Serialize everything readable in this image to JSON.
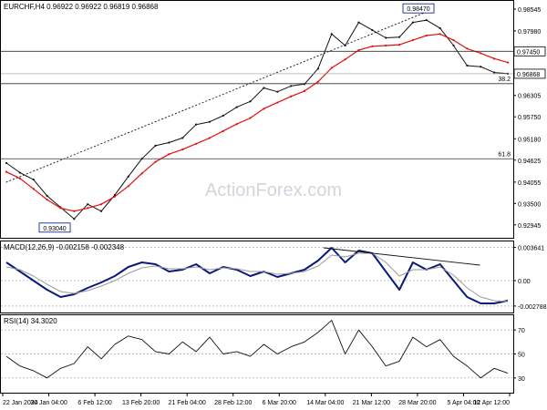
{
  "header": {
    "text": "EURCHF,H4  0.96922 0.96922 0.96819 0.96868"
  },
  "watermark": "ActionForex.com",
  "colors": {
    "price": "#111111",
    "ma": "#e01010",
    "macd": "#0a1a7a",
    "signal": "#9a9a9a",
    "rsi": "#111111",
    "hline": "#333333"
  },
  "chart_data": [
    {
      "type": "line",
      "title": "EURCHF,H4",
      "ylim": [
        0.9268,
        0.9864
      ],
      "y_ticks": [
        "0.98545",
        "0.97980",
        "0.97450",
        "0.96305",
        "0.95750",
        "0.95180",
        "0.94625",
        "0.94055",
        "0.93500",
        "0.92945"
      ],
      "x_ticks": [
        "22 Jan 2024",
        "30 Jan 04:00",
        "6 Feb 12:00",
        "13 Feb 20:00",
        "21 Feb 04:00",
        "28 Feb 12:00",
        "6 Mar 20:00",
        "14 Mar 04:00",
        "21 Mar 12:00",
        "28 Mar 20:00",
        "5 Apr 04:00",
        "12 Apr 12:00"
      ],
      "last_price": {
        "label": "0.96868",
        "value": 0.96868
      },
      "annotations": [
        {
          "label": "0.98470",
          "value": 0.9847,
          "x": 0.815
        },
        {
          "label": "0.93040",
          "value": 0.9304,
          "x": 0.105
        },
        {
          "label": "0.97450",
          "value": 0.9745,
          "line": true
        },
        {
          "label": "38.2",
          "value": 0.9661,
          "line": true
        },
        {
          "label": "61.8",
          "value": 0.9466,
          "line": true
        }
      ],
      "series": [
        {
          "values": [
            0.9455,
            0.943,
            0.9412,
            0.937,
            0.934,
            0.931,
            0.9348,
            0.933,
            0.9372,
            0.942,
            0.9466,
            0.95,
            0.9508,
            0.952,
            0.9555,
            0.9562,
            0.9578,
            0.96,
            0.9615,
            0.965,
            0.964,
            0.9655,
            0.966,
            0.97,
            0.979,
            0.976,
            0.982,
            0.98,
            0.978,
            0.9782,
            0.982,
            0.9826,
            0.9805,
            0.976,
            0.9708,
            0.9705,
            0.969,
            0.9687
          ]
        },
        {
          "values": [
            0.9432,
            0.9415,
            0.9388,
            0.936,
            0.9338,
            0.933,
            0.9338,
            0.9348,
            0.9368,
            0.9395,
            0.9428,
            0.9458,
            0.9478,
            0.949,
            0.9505,
            0.952,
            0.9538,
            0.9556,
            0.9572,
            0.9596,
            0.9612,
            0.9628,
            0.9642,
            0.9666,
            0.9702,
            0.9724,
            0.9748,
            0.9758,
            0.976,
            0.9762,
            0.9774,
            0.9786,
            0.979,
            0.9774,
            0.9752,
            0.974,
            0.9726,
            0.9716
          ]
        }
      ],
      "trendlines": [
        {
          "from": [
            0.01,
            0.9405
          ],
          "to": [
            0.83,
            0.9847
          ]
        }
      ]
    },
    {
      "type": "line",
      "title": "MACD(12,26,9) -0.002158 -0.002348",
      "ylim": [
        -0.0032,
        0.004
      ],
      "y_ticks": [
        "0.003641",
        "0.00",
        "-0.002788"
      ],
      "series": [
        {
          "values": [
            0.002,
            0.001,
            0.0,
            -0.001,
            -0.0018,
            -0.0015,
            -0.0008,
            -0.0002,
            0.0005,
            0.0015,
            0.002,
            0.0018,
            0.001,
            0.0012,
            0.0018,
            0.0008,
            0.0015,
            0.0012,
            0.0005,
            0.001,
            0.0004,
            0.0008,
            0.0012,
            0.0022,
            0.0036,
            0.002,
            0.0033,
            0.003,
            0.001,
            -0.001,
            0.002,
            0.0012,
            0.0018,
            0.0,
            -0.0018,
            -0.0025,
            -0.0025,
            -0.0022
          ]
        },
        {
          "values": [
            0.0015,
            0.0012,
            0.0005,
            -0.0004,
            -0.0012,
            -0.0014,
            -0.0011,
            -0.0006,
            0.0,
            0.0008,
            0.0014,
            0.0016,
            0.0013,
            0.0013,
            0.0015,
            0.0012,
            0.0014,
            0.0013,
            0.001,
            0.001,
            0.0007,
            0.0008,
            0.001,
            0.0016,
            0.0028,
            0.0026,
            0.003,
            0.003,
            0.002,
            0.0005,
            0.0012,
            0.0012,
            0.0015,
            0.0006,
            -0.0008,
            -0.0018,
            -0.0022,
            -0.0023
          ]
        }
      ],
      "trendlines": [
        {
          "from": [
            0.63,
            0.0036
          ],
          "to": [
            0.935,
            0.0017
          ]
        }
      ]
    },
    {
      "type": "line",
      "title": "RSI(14) 34.3020",
      "ylim": [
        20,
        80
      ],
      "y_ticks": [
        "70",
        "50",
        "30"
      ],
      "series": [
        {
          "values": [
            48,
            40,
            36,
            30,
            38,
            42,
            56,
            46,
            58,
            65,
            62,
            52,
            50,
            60,
            52,
            64,
            50,
            52,
            48,
            58,
            50,
            56,
            60,
            68,
            78,
            50,
            70,
            56,
            40,
            44,
            64,
            56,
            62,
            48,
            40,
            30,
            38,
            34
          ]
        }
      ]
    }
  ]
}
